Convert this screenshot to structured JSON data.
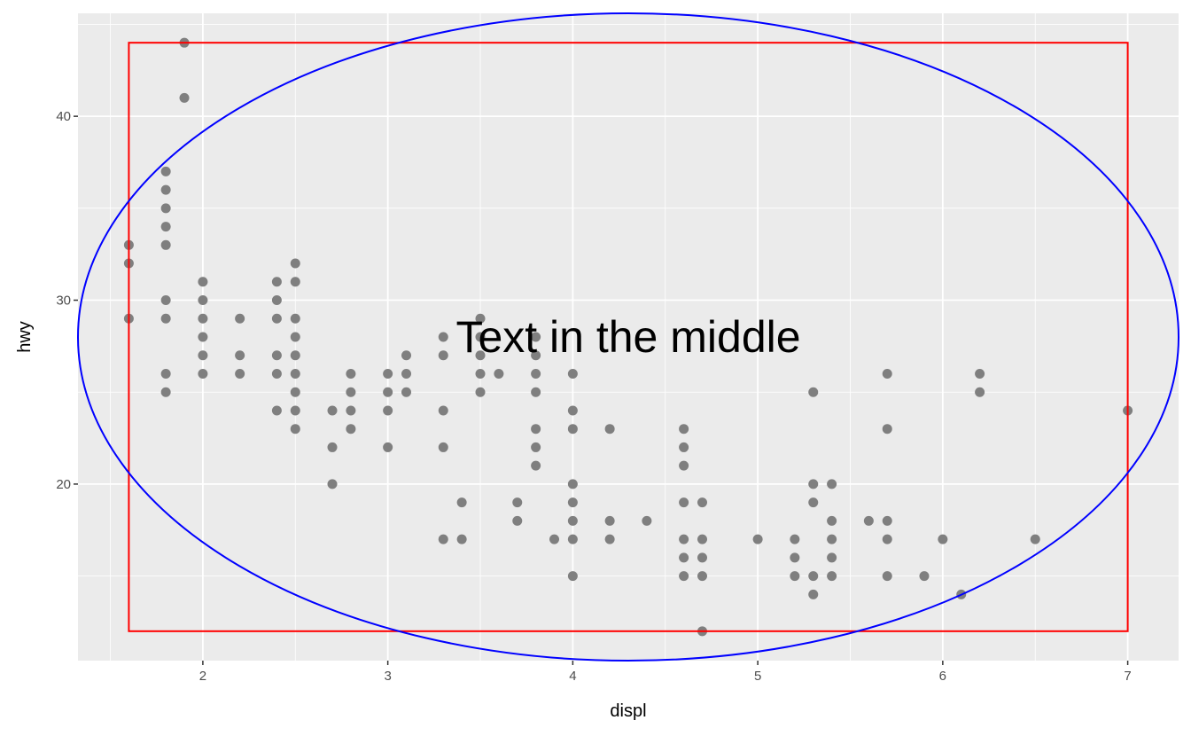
{
  "chart_data": {
    "type": "scatter",
    "xlabel": "displ",
    "ylabel": "hwy",
    "xlim": [
      1.325,
      7.275
    ],
    "ylim": [
      10.4,
      45.6
    ],
    "x_ticks": [
      2,
      3,
      4,
      5,
      6,
      7
    ],
    "y_ticks": [
      20,
      30,
      40
    ],
    "grid": true,
    "point_color": "#7f7f7f",
    "panel_background": "#ebebeb",
    "annotation": {
      "text": "Text in the middle",
      "x": 4.3,
      "y": 28
    },
    "rectangle": {
      "xmin": 1.6,
      "xmax": 7.0,
      "ymin": 12,
      "ymax": 44,
      "color": "#ff0000"
    },
    "ellipse": {
      "color": "#0000ff"
    },
    "points": [
      [
        1.6,
        33
      ],
      [
        1.6,
        32
      ],
      [
        1.6,
        29
      ],
      [
        1.8,
        37
      ],
      [
        1.8,
        36
      ],
      [
        1.8,
        35
      ],
      [
        1.8,
        34
      ],
      [
        1.8,
        33
      ],
      [
        1.8,
        30
      ],
      [
        1.8,
        29
      ],
      [
        1.8,
        26
      ],
      [
        1.8,
        25
      ],
      [
        1.9,
        44
      ],
      [
        1.9,
        41
      ],
      [
        2.0,
        31
      ],
      [
        2.0,
        30
      ],
      [
        2.0,
        29
      ],
      [
        2.0,
        28
      ],
      [
        2.0,
        27
      ],
      [
        2.0,
        26
      ],
      [
        2.2,
        29
      ],
      [
        2.2,
        27
      ],
      [
        2.2,
        26
      ],
      [
        2.4,
        31
      ],
      [
        2.4,
        30
      ],
      [
        2.4,
        29
      ],
      [
        2.4,
        27
      ],
      [
        2.4,
        26
      ],
      [
        2.4,
        24
      ],
      [
        2.5,
        32
      ],
      [
        2.5,
        31
      ],
      [
        2.5,
        29
      ],
      [
        2.5,
        28
      ],
      [
        2.5,
        27
      ],
      [
        2.5,
        26
      ],
      [
        2.5,
        25
      ],
      [
        2.5,
        24
      ],
      [
        2.5,
        23
      ],
      [
        2.7,
        24
      ],
      [
        2.7,
        22
      ],
      [
        2.7,
        20
      ],
      [
        2.8,
        26
      ],
      [
        2.8,
        25
      ],
      [
        2.8,
        24
      ],
      [
        2.8,
        23
      ],
      [
        3.0,
        26
      ],
      [
        3.0,
        25
      ],
      [
        3.0,
        24
      ],
      [
        3.0,
        22
      ],
      [
        3.1,
        27
      ],
      [
        3.1,
        26
      ],
      [
        3.1,
        25
      ],
      [
        3.3,
        28
      ],
      [
        3.3,
        27
      ],
      [
        3.3,
        24
      ],
      [
        3.3,
        22
      ],
      [
        3.3,
        17
      ],
      [
        3.4,
        19
      ],
      [
        3.4,
        17
      ],
      [
        3.5,
        29
      ],
      [
        3.5,
        28
      ],
      [
        3.5,
        27
      ],
      [
        3.5,
        26
      ],
      [
        3.5,
        25
      ],
      [
        3.6,
        26
      ],
      [
        3.7,
        19
      ],
      [
        3.7,
        18
      ],
      [
        3.8,
        28
      ],
      [
        3.8,
        27
      ],
      [
        3.8,
        26
      ],
      [
        3.8,
        25
      ],
      [
        3.8,
        23
      ],
      [
        3.8,
        22
      ],
      [
        3.8,
        21
      ],
      [
        3.9,
        17
      ],
      [
        4.0,
        26
      ],
      [
        4.0,
        24
      ],
      [
        4.0,
        23
      ],
      [
        4.0,
        20
      ],
      [
        4.0,
        19
      ],
      [
        4.0,
        18
      ],
      [
        4.0,
        17
      ],
      [
        4.0,
        15
      ],
      [
        4.2,
        23
      ],
      [
        4.2,
        18
      ],
      [
        4.2,
        17
      ],
      [
        4.4,
        18
      ],
      [
        4.6,
        23
      ],
      [
        4.6,
        22
      ],
      [
        4.6,
        21
      ],
      [
        4.6,
        19
      ],
      [
        4.6,
        17
      ],
      [
        4.6,
        16
      ],
      [
        4.6,
        15
      ],
      [
        4.7,
        19
      ],
      [
        4.7,
        17
      ],
      [
        4.7,
        16
      ],
      [
        4.7,
        15
      ],
      [
        4.7,
        12
      ],
      [
        5.0,
        17
      ],
      [
        5.2,
        17
      ],
      [
        5.2,
        16
      ],
      [
        5.2,
        15
      ],
      [
        5.3,
        25
      ],
      [
        5.3,
        20
      ],
      [
        5.3,
        19
      ],
      [
        5.3,
        15
      ],
      [
        5.3,
        14
      ],
      [
        5.4,
        20
      ],
      [
        5.4,
        18
      ],
      [
        5.4,
        17
      ],
      [
        5.4,
        16
      ],
      [
        5.4,
        15
      ],
      [
        5.6,
        18
      ],
      [
        5.7,
        26
      ],
      [
        5.7,
        23
      ],
      [
        5.7,
        18
      ],
      [
        5.7,
        17
      ],
      [
        5.7,
        15
      ],
      [
        5.9,
        15
      ],
      [
        6.0,
        17
      ],
      [
        6.1,
        14
      ],
      [
        6.2,
        26
      ],
      [
        6.2,
        25
      ],
      [
        6.5,
        17
      ],
      [
        7.0,
        24
      ]
    ]
  }
}
